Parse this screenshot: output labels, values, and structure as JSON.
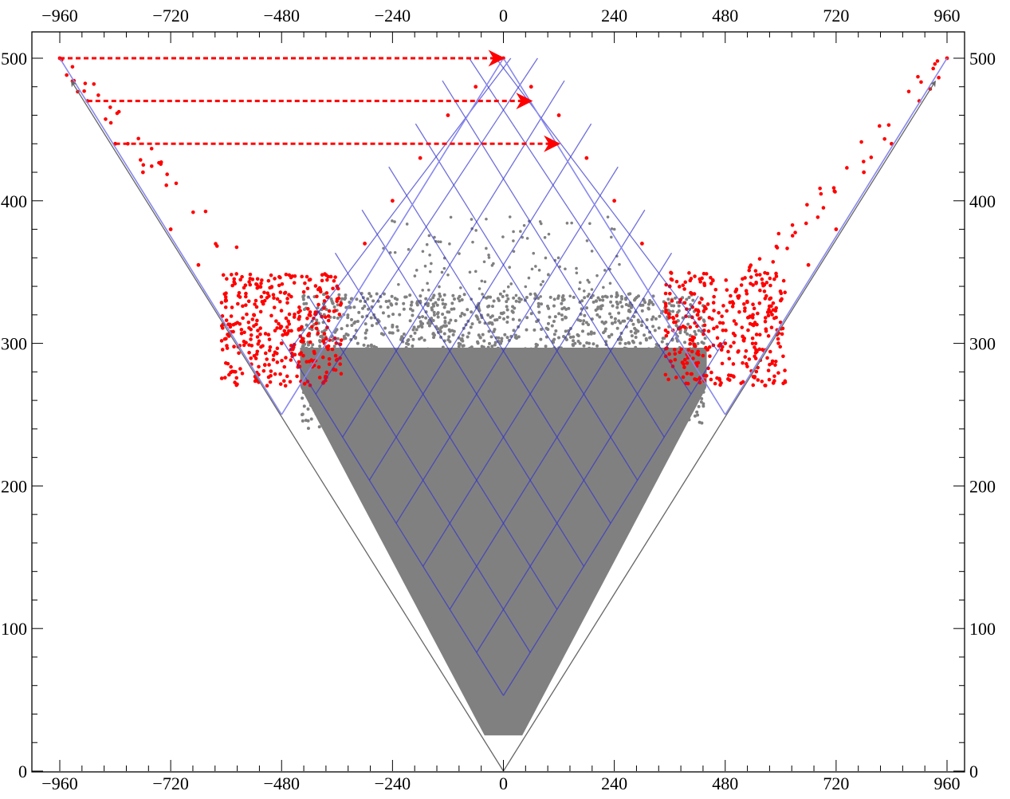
{
  "chart_data": {
    "type": "scatter",
    "title": "",
    "xlabel": "",
    "ylabel": "",
    "xlim": [
      -960,
      960
    ],
    "ylim": [
      0,
      500
    ],
    "x_ticks": [
      -960,
      -720,
      -480,
      -240,
      0,
      240,
      480,
      720,
      960
    ],
    "x_tick_labels": [
      "−960",
      "−720",
      "−480",
      "−240",
      "0",
      "240",
      "480",
      "720",
      "960"
    ],
    "y_ticks": [
      0,
      100,
      200,
      300,
      400,
      500
    ],
    "y_tick_labels": [
      "0",
      "100",
      "200",
      "300",
      "400",
      "500"
    ],
    "grid": false,
    "legend": "none",
    "colors": {
      "points_main": "#808080",
      "points_highlight": "#ff0000",
      "lattice": "#3333cc",
      "lattice_light": "#8888ee",
      "arrows_red": "#ff0000",
      "arrows_gray": "#666666",
      "axes": "#000000"
    },
    "cone_lines": [
      {
        "from": [
          0,
          0
        ],
        "to": [
          -960,
          500
        ]
      },
      {
        "from": [
          0,
          0
        ],
        "to": [
          960,
          500
        ]
      }
    ],
    "boundary_lines": [
      {
        "from": [
          0,
          500
        ],
        "to": [
          -960,
          500
        ]
      },
      {
        "from": [
          0,
          500
        ],
        "to": [
          960,
          500
        ]
      }
    ],
    "lattice": {
      "apex_bottom": [
        0,
        53
      ],
      "apex_top": [
        0,
        500
      ],
      "slope_per_x": 0.5208,
      "step_x": 58,
      "rows": 8,
      "cols": 8
    },
    "dashed_arrows": [
      {
        "from": [
          -960,
          500
        ],
        "to": [
          0,
          500
        ]
      },
      {
        "from": [
          -900,
          470
        ],
        "to": [
          60,
          470
        ]
      },
      {
        "from": [
          -840,
          440
        ],
        "to": [
          120,
          440
        ]
      }
    ],
    "gray_arrows": [
      {
        "from": [
          0,
          0
        ],
        "to": [
          -935,
          484
        ]
      },
      {
        "from": [
          0,
          0
        ],
        "to": [
          935,
          484
        ]
      }
    ],
    "series": [
      {
        "color": "#808080",
        "region": "dense cone",
        "description_points": [
          [
            0,
            25
          ],
          [
            -100,
            80
          ],
          [
            100,
            80
          ],
          [
            -200,
            150
          ],
          [
            200,
            150
          ],
          [
            -300,
            220
          ],
          [
            300,
            220
          ],
          [
            -380,
            260
          ],
          [
            380,
            260
          ],
          [
            0,
            300
          ],
          [
            -150,
            320
          ],
          [
            150,
            320
          ],
          [
            -250,
            330
          ],
          [
            250,
            330
          ],
          [
            0,
            330
          ]
        ]
      },
      {
        "color": "#ff0000",
        "region": "outer wings",
        "description_points": [
          [
            -960,
            500
          ],
          [
            -900,
            470
          ],
          [
            -840,
            440
          ],
          [
            -780,
            420
          ],
          [
            -720,
            380
          ],
          [
            -660,
            355
          ],
          [
            -600,
            330
          ],
          [
            -540,
            320
          ],
          [
            -480,
            300
          ],
          [
            -420,
            320
          ],
          [
            -360,
            340
          ],
          [
            -300,
            370
          ],
          [
            -240,
            400
          ],
          [
            -180,
            430
          ],
          [
            -120,
            460
          ],
          [
            -60,
            480
          ],
          [
            0,
            500
          ],
          [
            60,
            480
          ],
          [
            120,
            460
          ],
          [
            180,
            430
          ],
          [
            240,
            400
          ],
          [
            300,
            370
          ],
          [
            360,
            340
          ],
          [
            420,
            320
          ],
          [
            480,
            300
          ],
          [
            540,
            320
          ],
          [
            600,
            330
          ],
          [
            660,
            355
          ],
          [
            720,
            380
          ],
          [
            780,
            420
          ],
          [
            840,
            440
          ],
          [
            900,
            470
          ],
          [
            960,
            500
          ]
        ]
      }
    ]
  }
}
